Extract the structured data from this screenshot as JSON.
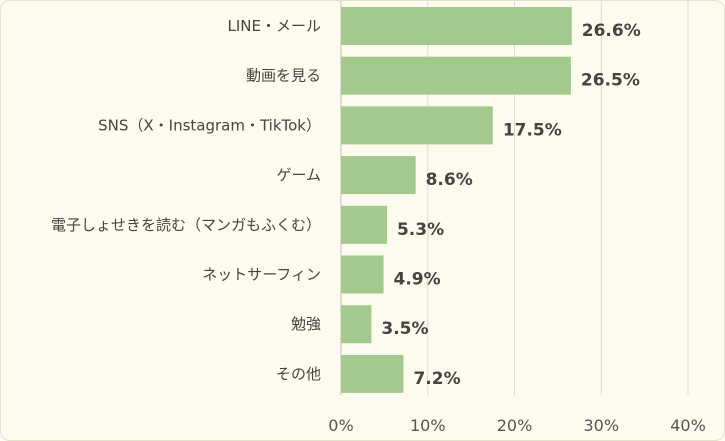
{
  "chart_data": {
    "type": "bar",
    "orientation": "horizontal",
    "categories": [
      "LINE・メール",
      "動画を見る",
      "SNS（X・Instagram・TikTok）",
      "ゲーム",
      "電子しょせきを読む（マンガもふくむ）",
      "ネットサーフィン",
      "勉強",
      "その他"
    ],
    "values": [
      26.6,
      26.5,
      17.5,
      8.6,
      5.3,
      4.9,
      3.5,
      7.2
    ],
    "value_labels": [
      "26.6%",
      "26.5%",
      "17.5%",
      "8.6%",
      "5.3%",
      "4.9%",
      "3.5%",
      "7.2%"
    ],
    "xlim": [
      0,
      40
    ],
    "xticks": [
      0,
      10,
      20,
      30,
      40
    ],
    "xtick_labels": [
      "0%",
      "10%",
      "20%",
      "30%",
      "40%"
    ],
    "grid": true,
    "title": "",
    "xlabel": "",
    "ylabel": "",
    "colors": {
      "bar": "#a3c98d",
      "grid": "#d9d9d9",
      "background": "#fdfbee"
    }
  }
}
